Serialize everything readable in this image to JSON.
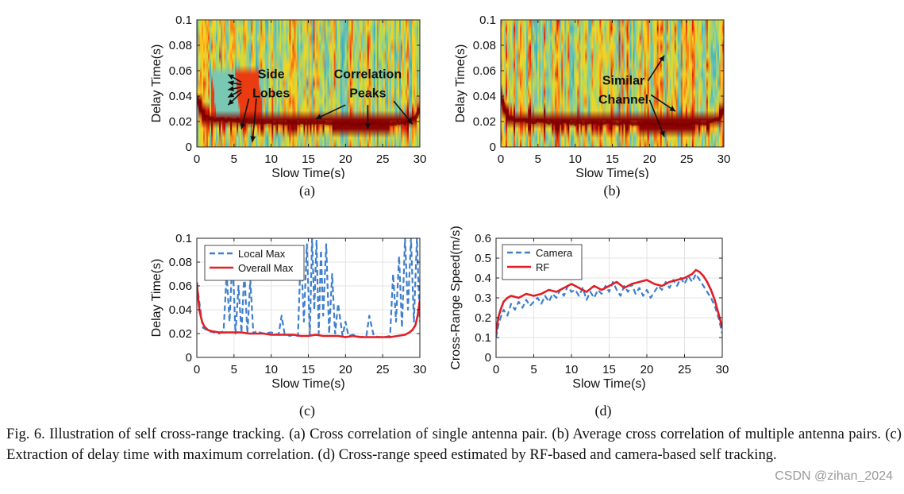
{
  "figure": {
    "panels": [
      {
        "id": "a",
        "label": "(a)"
      },
      {
        "id": "b",
        "label": "(b)"
      },
      {
        "id": "c",
        "label": "(c)"
      },
      {
        "id": "d",
        "label": "(d)"
      }
    ],
    "caption": "Fig. 6.  Illustration of self cross-range tracking. (a) Cross correlation of single antenna pair. (b) Average cross correlation of multiple antenna pairs. (c) Extraction of delay time with maximum correlation. (d) Cross-range speed estimated by RF-based and camera-based self tracking.",
    "watermark": "CSDN @zihan_2024"
  },
  "colors": {
    "local_max": "#3f7fcb",
    "overall_max": "#e01f26",
    "camera": "#3f7fcb",
    "rf": "#e01f26",
    "heatmap_low": "#1fa5c9",
    "heatmap_mid": "#ffd21f",
    "heatmap_high": "#e4160e",
    "heatmap_peak": "#7a0000"
  },
  "chart_data": [
    {
      "id": "a",
      "type": "heatmap",
      "xlabel": "Slow Time(s)",
      "ylabel": "Delay Time(s)",
      "xlim": [
        0,
        30
      ],
      "ylim": [
        0,
        0.1
      ],
      "xticks": [
        "0",
        "5",
        "10",
        "15",
        "20",
        "25",
        "30"
      ],
      "yticks": [
        "0",
        "0.02",
        "0.04",
        "0.06",
        "0.08",
        "0.1"
      ],
      "ridge": {
        "x": [
          0,
          0.5,
          1,
          2,
          5,
          10,
          15,
          20,
          25,
          28,
          29.5,
          30
        ],
        "y": [
          0.04,
          0.03,
          0.025,
          0.022,
          0.021,
          0.019,
          0.019,
          0.018,
          0.018,
          0.019,
          0.023,
          0.03
        ]
      },
      "annotations": [
        {
          "text": "Side",
          "x": 10.0,
          "y": 0.054
        },
        {
          "text": "Lobes",
          "x": 10.0,
          "y": 0.039
        },
        {
          "text": "Correlation",
          "x": 23.0,
          "y": 0.054
        },
        {
          "text": "Peaks",
          "x": 23.0,
          "y": 0.039
        }
      ],
      "arrows": [
        {
          "from": [
            6.0,
            0.051
          ],
          "to": [
            4.2,
            0.057
          ]
        },
        {
          "from": [
            6.0,
            0.049
          ],
          "to": [
            4.2,
            0.051
          ]
        },
        {
          "from": [
            6.0,
            0.047
          ],
          "to": [
            4.2,
            0.045
          ]
        },
        {
          "from": [
            6.0,
            0.045
          ],
          "to": [
            4.2,
            0.039
          ]
        },
        {
          "from": [
            6.0,
            0.043
          ],
          "to": [
            4.2,
            0.033
          ]
        },
        {
          "from": [
            7.0,
            0.038
          ],
          "to": [
            6.0,
            0.014
          ]
        },
        {
          "from": [
            8.0,
            0.038
          ],
          "to": [
            7.5,
            0.004
          ]
        },
        {
          "from": [
            20.0,
            0.033
          ],
          "to": [
            16.0,
            0.022
          ]
        },
        {
          "from": [
            23.0,
            0.033
          ],
          "to": [
            23.0,
            0.014
          ]
        },
        {
          "from": [
            26.5,
            0.036
          ],
          "to": [
            29.0,
            0.018
          ]
        }
      ]
    },
    {
      "id": "b",
      "type": "heatmap",
      "xlabel": "Slow Time(s)",
      "ylabel": "Delay Time(s)",
      "xlim": [
        0,
        30
      ],
      "ylim": [
        0,
        0.1
      ],
      "xticks": [
        "0",
        "5",
        "10",
        "15",
        "20",
        "25",
        "30"
      ],
      "yticks": [
        "0",
        "0.02",
        "0.04",
        "0.06",
        "0.08",
        "0.1"
      ],
      "ridge": {
        "x": [
          0,
          0.5,
          1,
          2,
          5,
          10,
          15,
          20,
          25,
          28,
          29.5,
          30
        ],
        "y": [
          0.04,
          0.03,
          0.024,
          0.021,
          0.02,
          0.019,
          0.019,
          0.018,
          0.018,
          0.019,
          0.023,
          0.03
        ]
      },
      "annotations": [
        {
          "text": "Similar",
          "x": 16.5,
          "y": 0.049
        },
        {
          "text": "Channel",
          "x": 16.5,
          "y": 0.034
        }
      ],
      "arrows": [
        {
          "from": [
            19.8,
            0.052
          ],
          "to": [
            22.0,
            0.072
          ]
        },
        {
          "from": [
            20.2,
            0.041
          ],
          "to": [
            23.5,
            0.028
          ]
        },
        {
          "from": [
            20.0,
            0.037
          ],
          "to": [
            22.0,
            0.008
          ]
        }
      ]
    },
    {
      "id": "c",
      "type": "line",
      "xlabel": "Slow Time(s)",
      "ylabel": "Delay Time(s)",
      "xlim": [
        0,
        30
      ],
      "ylim": [
        0,
        0.1
      ],
      "xticks": [
        "0",
        "5",
        "10",
        "15",
        "20",
        "25",
        "30"
      ],
      "yticks": [
        "0",
        "0.02",
        "0.04",
        "0.06",
        "0.08",
        "0.1"
      ],
      "grid": true,
      "legend_position": "top-left",
      "series": [
        {
          "name": "Local Max",
          "style": "dashed",
          "x": [
            0,
            0.8,
            1.6,
            2.4,
            3.0,
            3.6,
            4.0,
            4.4,
            4.8,
            5.2,
            5.6,
            6.0,
            6.4,
            6.8,
            7.2,
            7.6,
            8.0,
            9.0,
            10.0,
            11.0,
            11.4,
            11.8,
            12.5,
            13.0,
            13.6,
            14.0,
            14.4,
            14.8,
            15.2,
            15.5,
            15.8,
            16.1,
            16.4,
            16.7,
            17.0,
            17.4,
            17.8,
            18.2,
            18.6,
            19.0,
            19.6,
            20.0,
            20.4,
            21.0,
            22.0,
            22.8,
            23.2,
            23.8,
            24.5,
            25.2,
            26.0,
            26.4,
            26.8,
            27.2,
            27.6,
            28.0,
            28.4,
            28.8,
            29.2,
            29.6,
            30.0
          ],
          "y": [
            0.062,
            0.025,
            0.022,
            0.021,
            0.02,
            0.022,
            0.07,
            0.03,
            0.085,
            0.02,
            0.06,
            0.021,
            0.072,
            0.02,
            0.065,
            0.02,
            0.022,
            0.02,
            0.021,
            0.019,
            0.035,
            0.02,
            0.018,
            0.019,
            0.018,
            0.09,
            0.03,
            0.095,
            0.019,
            0.1,
            0.04,
            0.098,
            0.02,
            0.09,
            0.035,
            0.095,
            0.02,
            0.07,
            0.02,
            0.045,
            0.018,
            0.03,
            0.018,
            0.019,
            0.017,
            0.018,
            0.035,
            0.018,
            0.017,
            0.017,
            0.018,
            0.07,
            0.03,
            0.085,
            0.025,
            0.1,
            0.04,
            0.1,
            0.03,
            0.1,
            0.03
          ]
        },
        {
          "name": "Overall Max",
          "style": "solid",
          "x": [
            0,
            0.2,
            0.4,
            0.7,
            1.0,
            1.5,
            2,
            3,
            4,
            5,
            6,
            7,
            8,
            9,
            10,
            11,
            12,
            13,
            14,
            15,
            16,
            17,
            18,
            19,
            20,
            21,
            22,
            23,
            24,
            25,
            26,
            27,
            28,
            28.6,
            29.0,
            29.4,
            29.7,
            30.0
          ],
          "y": [
            0.063,
            0.048,
            0.038,
            0.03,
            0.026,
            0.023,
            0.022,
            0.021,
            0.021,
            0.021,
            0.021,
            0.02,
            0.02,
            0.02,
            0.019,
            0.019,
            0.019,
            0.019,
            0.018,
            0.018,
            0.019,
            0.018,
            0.018,
            0.018,
            0.017,
            0.018,
            0.017,
            0.017,
            0.017,
            0.017,
            0.017,
            0.018,
            0.019,
            0.021,
            0.023,
            0.027,
            0.035,
            0.048
          ]
        }
      ]
    },
    {
      "id": "d",
      "type": "line",
      "xlabel": "Slow Time(s)",
      "ylabel": "Cross-Range Speed(m/s)",
      "xlim": [
        0,
        30
      ],
      "ylim": [
        0,
        0.6
      ],
      "xticks": [
        "0",
        "5",
        "10",
        "15",
        "20",
        "25",
        "30"
      ],
      "yticks": [
        "0",
        "0.1",
        "0.2",
        "0.3",
        "0.4",
        "0.5",
        "0.6"
      ],
      "grid": true,
      "legend_position": "top-left",
      "series": [
        {
          "name": "Camera",
          "style": "dashed",
          "x": [
            0,
            0.3,
            0.6,
            1,
            1.5,
            2,
            2.5,
            3,
            3.5,
            4,
            4.5,
            5,
            5.5,
            6,
            6.5,
            7,
            7.5,
            8,
            8.5,
            9,
            9.5,
            10,
            10.5,
            11,
            11.5,
            12,
            12.5,
            13,
            13.5,
            14,
            14.5,
            15,
            15.5,
            16,
            16.5,
            17,
            17.5,
            18,
            18.5,
            19,
            19.5,
            20,
            20.5,
            21,
            21.5,
            22,
            22.5,
            23,
            23.5,
            24,
            24.5,
            25,
            25.5,
            26,
            26.5,
            27,
            27.5,
            28,
            28.5,
            29,
            29.5,
            30
          ],
          "y": [
            0.1,
            0.16,
            0.2,
            0.24,
            0.21,
            0.27,
            0.24,
            0.28,
            0.25,
            0.29,
            0.26,
            0.28,
            0.3,
            0.27,
            0.31,
            0.28,
            0.32,
            0.3,
            0.34,
            0.31,
            0.36,
            0.33,
            0.34,
            0.31,
            0.35,
            0.29,
            0.33,
            0.3,
            0.34,
            0.32,
            0.36,
            0.33,
            0.38,
            0.34,
            0.31,
            0.36,
            0.33,
            0.37,
            0.32,
            0.35,
            0.31,
            0.34,
            0.3,
            0.33,
            0.36,
            0.34,
            0.38,
            0.35,
            0.39,
            0.36,
            0.4,
            0.37,
            0.41,
            0.38,
            0.42,
            0.39,
            0.36,
            0.33,
            0.3,
            0.26,
            0.2,
            0.12
          ]
        },
        {
          "name": "RF",
          "style": "solid",
          "x": [
            0,
            0.3,
            0.6,
            1,
            1.5,
            2,
            3,
            4,
            5,
            6,
            7,
            8,
            9,
            10,
            11,
            12,
            13,
            14,
            15,
            16,
            17,
            18,
            19,
            20,
            21,
            22,
            23,
            24,
            25,
            26,
            26.5,
            27,
            27.5,
            28,
            28.5,
            29,
            29.5,
            30
          ],
          "y": [
            0.12,
            0.2,
            0.24,
            0.28,
            0.3,
            0.31,
            0.3,
            0.32,
            0.31,
            0.32,
            0.34,
            0.33,
            0.35,
            0.37,
            0.35,
            0.33,
            0.36,
            0.34,
            0.36,
            0.38,
            0.35,
            0.37,
            0.38,
            0.39,
            0.37,
            0.36,
            0.38,
            0.39,
            0.4,
            0.42,
            0.44,
            0.43,
            0.41,
            0.38,
            0.34,
            0.29,
            0.22,
            0.15
          ]
        }
      ]
    }
  ]
}
